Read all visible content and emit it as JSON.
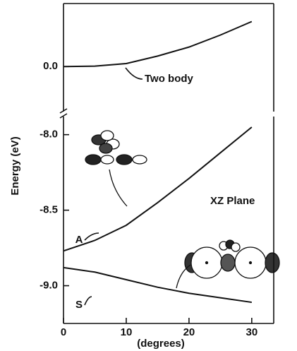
{
  "chart_data": [
    {
      "type": "line",
      "x": [
        0,
        5,
        10,
        15,
        20,
        25,
        30
      ],
      "series": [
        {
          "name": "Two body",
          "color": "#111",
          "values": [
            0,
            0.003,
            0.02,
            0.07,
            0.13,
            0.21,
            0.3
          ]
        }
      ],
      "xlim": [
        0,
        33.5
      ],
      "ylim": [
        -0.3,
        0.42
      ],
      "yticks": [
        {
          "value": 0,
          "label": "0.0"
        }
      ]
    },
    {
      "type": "line",
      "x": [
        0,
        5,
        10,
        15,
        20,
        25,
        30
      ],
      "series": [
        {
          "name": "A",
          "color": "#111",
          "values": [
            -8.77,
            -8.7,
            -8.6,
            -8.45,
            -8.29,
            -8.12,
            -7.95
          ]
        },
        {
          "name": "S",
          "color": "#111",
          "values": [
            -8.88,
            -8.91,
            -8.96,
            -9.01,
            -9.05,
            -9.08,
            -9.11
          ]
        }
      ],
      "xlim": [
        0,
        33.5
      ],
      "ylim": [
        -9.25,
        -7.88
      ],
      "yticks": [
        {
          "value": -8,
          "label": "-8.0"
        },
        {
          "value": -8.5,
          "label": "-8.5"
        },
        {
          "value": -9,
          "label": "-9.0"
        }
      ],
      "xticks": [
        0,
        10,
        20,
        30
      ],
      "ylabel": "Energy (eV)",
      "xlabel": "(degrees)",
      "annotation": "XZ Plane"
    }
  ]
}
